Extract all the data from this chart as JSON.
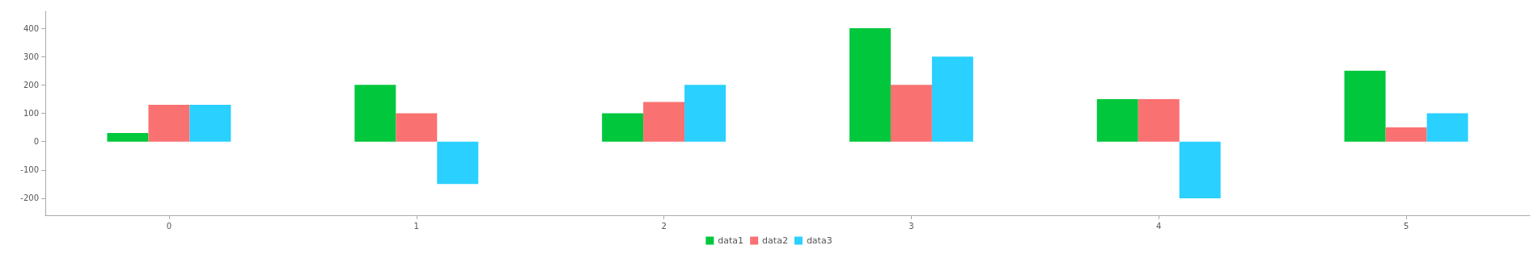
{
  "chart_data": {
    "type": "bar",
    "categories": [
      "0",
      "1",
      "2",
      "3",
      "4",
      "5"
    ],
    "series": [
      {
        "name": "data1",
        "color": "#00c73c",
        "values": [
          30,
          200,
          100,
          400,
          150,
          250
        ]
      },
      {
        "name": "data2",
        "color": "#fa7171",
        "values": [
          130,
          100,
          140,
          200,
          150,
          50
        ]
      },
      {
        "name": "data3",
        "color": "#2ad0ff",
        "values": [
          130,
          -150,
          200,
          300,
          -200,
          100
        ]
      }
    ],
    "ylim": [
      -260,
      460
    ],
    "yticks": [
      -200,
      -100,
      0,
      100,
      200,
      300,
      400
    ],
    "grid": false,
    "legend": "bottom"
  }
}
